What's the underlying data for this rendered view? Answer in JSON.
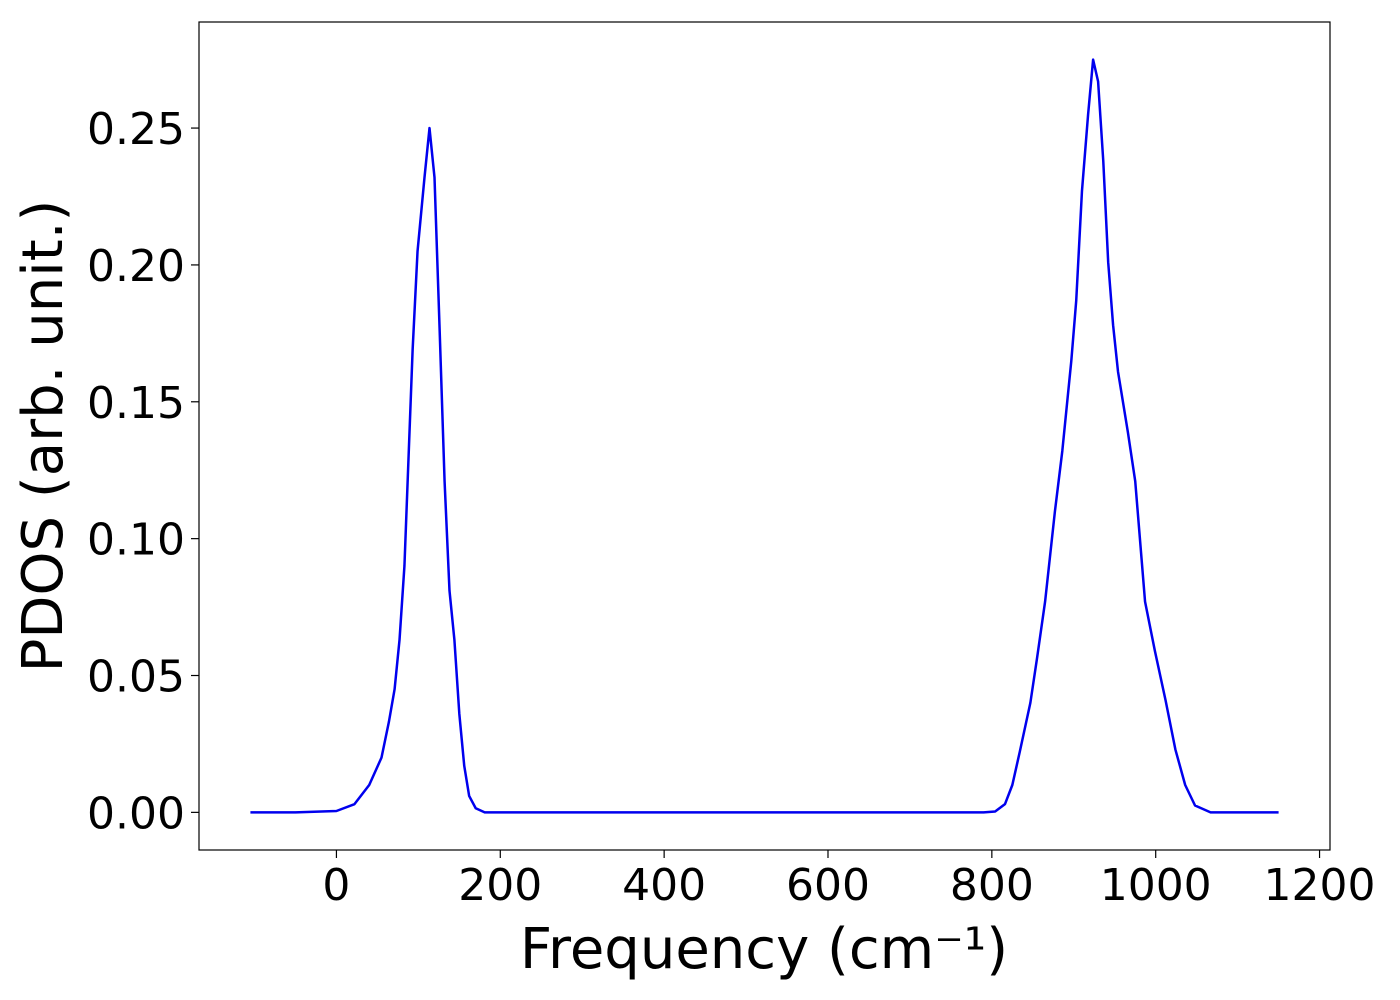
{
  "chart_data": {
    "type": "line",
    "xlabel": "Frequency (cm⁻¹)",
    "ylabel": "PDOS (arb. unit.)",
    "x": [
      -105,
      -50,
      0,
      22,
      40,
      55,
      64,
      71,
      77,
      83,
      93,
      99,
      107.5,
      113.6,
      119.7,
      126,
      132,
      138,
      144,
      150,
      156,
      162,
      170,
      181,
      300,
      500,
      700,
      790,
      804,
      816,
      825,
      834,
      847,
      855,
      865,
      877,
      886,
      897,
      903,
      910,
      917.5,
      923.6,
      929.7,
      936,
      942,
      948,
      954,
      966,
      975,
      987,
      999,
      1012,
      1024,
      1036,
      1048,
      1067,
      1150
    ],
    "series": [
      {
        "name": "PDOS",
        "color": "#0000ee",
        "values": [
          0,
          0,
          0.0005,
          0.003,
          0.01,
          0.02,
          0.033,
          0.045,
          0.063,
          0.09,
          0.169,
          0.205,
          0.232,
          0.25,
          0.232,
          0.176,
          0.121,
          0.081,
          0.063,
          0.036,
          0.017,
          0.006,
          0.0015,
          0,
          0,
          0,
          0,
          0,
          0.0003,
          0.003,
          0.01,
          0.022,
          0.04,
          0.056,
          0.077,
          0.11,
          0.132,
          0.165,
          0.187,
          0.227,
          0.255,
          0.275,
          0.267,
          0.238,
          0.201,
          0.178,
          0.161,
          0.139,
          0.121,
          0.077,
          0.059,
          0.041,
          0.023,
          0.01,
          0.0025,
          0,
          0
        ]
      }
    ],
    "xlim": [
      -167.75,
      1212.75
    ],
    "ylim": [
      -0.01375,
      0.28875
    ],
    "xticks": [
      0,
      200,
      400,
      600,
      800,
      1000,
      1200
    ],
    "yticks": [
      {
        "value": 0,
        "label": "0.00"
      },
      {
        "value": 0.05,
        "label": "0.05"
      },
      {
        "value": 0.1,
        "label": "0.10"
      },
      {
        "value": 0.15,
        "label": "0.15"
      },
      {
        "value": 0.2,
        "label": "0.20"
      },
      {
        "value": 0.25,
        "label": "0.25"
      }
    ],
    "grid": false
  }
}
